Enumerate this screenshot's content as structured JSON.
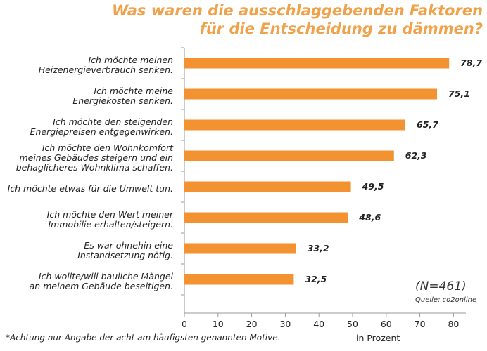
{
  "title_lines": [
    "Was waren die ausschlaggebenden Faktoren",
    "für die Entscheidung zu dämmen?"
  ],
  "n_label": "(N=461)",
  "source": "Quelle: co2online",
  "footnote": "*Achtung nur Angabe der acht am häufigsten genannten Motive.",
  "accent_color": "#f39230",
  "chart_data": {
    "type": "bar",
    "orientation": "horizontal",
    "title": "Was waren die ausschlaggebenden Faktoren für die Entscheidung zu dämmen?",
    "categories": [
      [
        "Ich möchte meinen",
        "Heizenergieverbrauch senken."
      ],
      [
        "Ich möchte meine",
        "Energiekosten senken."
      ],
      [
        "Ich möchte den steigenden",
        "Energiepreisen entgegenwirken."
      ],
      [
        "Ich möchte den Wohnkomfort",
        "meines Gebäudes steigern und ein",
        "behaglicheres Wohnklima schaffen."
      ],
      [
        "Ich möchte etwas für die Umwelt tun."
      ],
      [
        "Ich möchte den Wert meiner",
        "Immobilie erhalten/steigern."
      ],
      [
        "Es war ohnehin eine",
        "Instandsetzung nötig."
      ],
      [
        "Ich wollte/will bauliche Mängel",
        "an meinem Gebäude beseitigen."
      ]
    ],
    "values": [
      78.7,
      75.1,
      65.7,
      62.3,
      49.5,
      48.6,
      33.2,
      32.5
    ],
    "value_labels": [
      "78,7",
      "75,1",
      "65,7",
      "62,3",
      "49,5",
      "48,6",
      "33,2",
      "32,5"
    ],
    "xlabel": "in Prozent",
    "xlim": [
      0,
      85
    ],
    "xticks": [
      0,
      10,
      20,
      30,
      40,
      50,
      60,
      70,
      80
    ],
    "grid": false,
    "legend": "none"
  }
}
